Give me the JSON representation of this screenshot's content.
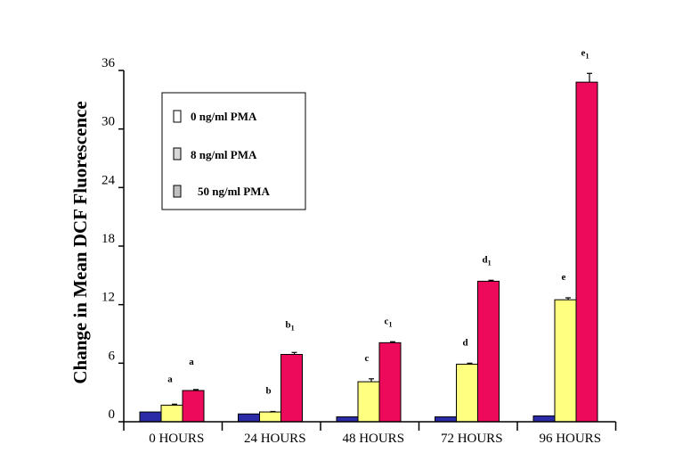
{
  "chart_data": {
    "type": "bar",
    "ylabel": "Change in Mean DCF Fluorescence",
    "xlabel": "",
    "ylim": [
      0,
      36
    ],
    "yticks": [
      "0",
      "6",
      "12",
      "18",
      "24",
      "30",
      "36"
    ],
    "ytick_values": [
      0,
      6,
      12,
      18,
      24,
      30,
      36
    ],
    "categories": [
      "0 HOURS",
      "24 HOURS",
      "48 HOURS",
      "72 HOURS",
      "96 HOURS"
    ],
    "legend_position": "top-left",
    "series": [
      {
        "name": "0 ng/ml PMA",
        "color": "#2b2ba8",
        "values": [
          1.0,
          0.8,
          0.5,
          0.5,
          0.6
        ],
        "errors": [
          0,
          0,
          0,
          0,
          0
        ]
      },
      {
        "name": "8 ng/ml PMA",
        "color": "#ffff80",
        "values": [
          1.7,
          1.0,
          4.1,
          5.9,
          12.5
        ],
        "errors": [
          0.1,
          0.05,
          0.3,
          0.1,
          0.2
        ]
      },
      {
        "name": "50 ng/ml PMA",
        "color": "#ee0a5a",
        "values": [
          3.2,
          6.9,
          8.1,
          14.4,
          34.8
        ],
        "errors": [
          0.1,
          0.2,
          0.1,
          0.1,
          0.9
        ]
      }
    ],
    "annotations": [
      {
        "category": 0,
        "series": 1,
        "text": "a",
        "sub": ""
      },
      {
        "category": 0,
        "series": 2,
        "text": "a",
        "sub": ""
      },
      {
        "category": 1,
        "series": 1,
        "text": "b",
        "sub": ""
      },
      {
        "category": 1,
        "series": 2,
        "text": "b",
        "sub": "1"
      },
      {
        "category": 2,
        "series": 1,
        "text": "c",
        "sub": ""
      },
      {
        "category": 2,
        "series": 2,
        "text": "c",
        "sub": "1"
      },
      {
        "category": 3,
        "series": 1,
        "text": "d",
        "sub": ""
      },
      {
        "category": 3,
        "series": 2,
        "text": "d",
        "sub": "1"
      },
      {
        "category": 4,
        "series": 1,
        "text": "e",
        "sub": ""
      },
      {
        "category": 4,
        "series": 2,
        "text": "e",
        "sub": "1"
      }
    ]
  }
}
